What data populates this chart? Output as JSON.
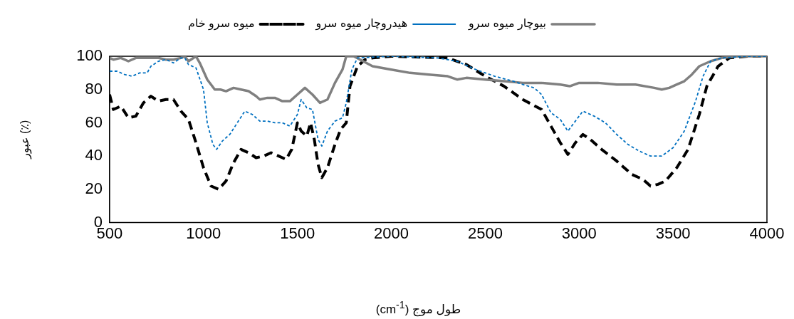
{
  "chart_data": {
    "type": "line",
    "xlabel": "طول موج (cm$^{-1}$)",
    "ylabel": "عبور (٪)",
    "xlim": [
      500,
      4000
    ],
    "xticks": [
      500,
      1000,
      1500,
      2000,
      2500,
      3000,
      3500,
      4000
    ],
    "ylim": [
      0,
      100
    ],
    "yticks": [
      0,
      20,
      40,
      60,
      80,
      100
    ],
    "grid": false,
    "legend": "top",
    "marker": "none",
    "series": [
      {
        "name": "بیوچار میوه سرو",
        "color": "#808080",
        "line_style": "solid",
        "x": [
          500,
          520,
          560,
          600,
          640,
          700,
          760,
          800,
          840,
          880,
          900,
          920,
          960,
          980,
          1020,
          1060,
          1090,
          1120,
          1160,
          1200,
          1240,
          1280,
          1300,
          1340,
          1380,
          1420,
          1460,
          1500,
          1540,
          1580,
          1620,
          1660,
          1700,
          1740,
          1760,
          1800,
          1850,
          1900,
          2000,
          2100,
          2200,
          2300,
          2350,
          2400,
          2500,
          2600,
          2700,
          2800,
          2900,
          2950,
          3000,
          3100,
          3200,
          3300,
          3400,
          3440,
          3480,
          3520,
          3560,
          3600,
          3640,
          3700,
          3760,
          3850,
          4000
        ],
        "values": [
          99,
          98,
          99,
          97,
          99,
          99,
          99,
          98,
          98,
          99,
          100,
          97,
          100,
          96,
          86,
          80,
          80,
          79,
          81,
          80,
          79,
          76,
          74,
          75,
          75,
          73,
          73,
          77,
          81,
          77,
          72,
          74,
          84,
          92,
          100,
          100,
          97,
          94,
          92,
          90,
          89,
          88,
          86,
          87,
          86,
          85,
          84,
          84,
          83,
          82,
          84,
          84,
          83,
          83,
          81,
          80,
          81,
          83,
          85,
          89,
          94,
          97,
          99,
          100,
          100
        ]
      },
      {
        "name": "هیدروچار میوه سرو",
        "color": "#0070c0",
        "line_style": "dotted",
        "x": [
          500,
          540,
          580,
          620,
          660,
          700,
          720,
          760,
          800,
          840,
          880,
          900,
          920,
          960,
          1000,
          1020,
          1050,
          1070,
          1100,
          1140,
          1180,
          1220,
          1260,
          1300,
          1340,
          1380,
          1420,
          1460,
          1500,
          1520,
          1550,
          1580,
          1610,
          1630,
          1660,
          1700,
          1740,
          1760,
          1790,
          1820,
          2000,
          2250,
          2350,
          2450,
          2550,
          2650,
          2700,
          2760,
          2800,
          2850,
          2900,
          2940,
          2980,
          3020,
          3080,
          3140,
          3200,
          3260,
          3320,
          3380,
          3440,
          3500,
          3560,
          3620,
          3660,
          3700,
          3760,
          3900,
          4000
        ],
        "values": [
          91,
          91,
          89,
          88,
          90,
          90,
          94,
          97,
          98,
          96,
          99,
          99,
          95,
          93,
          80,
          60,
          47,
          44,
          49,
          53,
          60,
          67,
          65,
          61,
          61,
          60,
          60,
          58,
          65,
          74,
          69,
          68,
          50,
          46,
          55,
          61,
          63,
          72,
          92,
          99,
          100,
          99,
          97,
          92,
          88,
          85,
          83,
          81,
          77,
          66,
          62,
          55,
          61,
          67,
          64,
          60,
          53,
          47,
          43,
          40,
          40,
          45,
          55,
          73,
          88,
          97,
          99,
          100,
          100
        ]
      },
      {
        "name": "میوه سرو خام",
        "color": "#000000",
        "line_style": "dashed",
        "x": [
          500,
          520,
          560,
          600,
          640,
          680,
          720,
          760,
          800,
          840,
          880,
          920,
          960,
          1000,
          1040,
          1080,
          1120,
          1160,
          1200,
          1240,
          1280,
          1320,
          1360,
          1400,
          1440,
          1470,
          1500,
          1520,
          1550,
          1570,
          1590,
          1610,
          1630,
          1660,
          1700,
          1730,
          1760,
          1780,
          1820,
          1860,
          1900,
          2000,
          2300,
          2400,
          2500,
          2600,
          2700,
          2750,
          2800,
          2850,
          2900,
          2940,
          2980,
          3020,
          3060,
          3120,
          3200,
          3280,
          3340,
          3380,
          3420,
          3460,
          3520,
          3580,
          3640,
          3680,
          3740,
          3800,
          3900,
          4000
        ],
        "values": [
          77,
          68,
          70,
          63,
          64,
          72,
          76,
          73,
          74,
          74,
          67,
          62,
          48,
          33,
          22,
          20,
          25,
          36,
          44,
          42,
          39,
          40,
          42,
          40,
          38,
          44,
          60,
          55,
          52,
          60,
          50,
          35,
          27,
          33,
          47,
          56,
          60,
          82,
          94,
          98,
          99,
          100,
          99,
          95,
          88,
          82,
          74,
          71,
          68,
          58,
          48,
          41,
          48,
          53,
          50,
          44,
          37,
          29,
          26,
          22,
          23,
          25,
          33,
          44,
          65,
          82,
          94,
          99,
          100,
          100
        ]
      }
    ]
  }
}
